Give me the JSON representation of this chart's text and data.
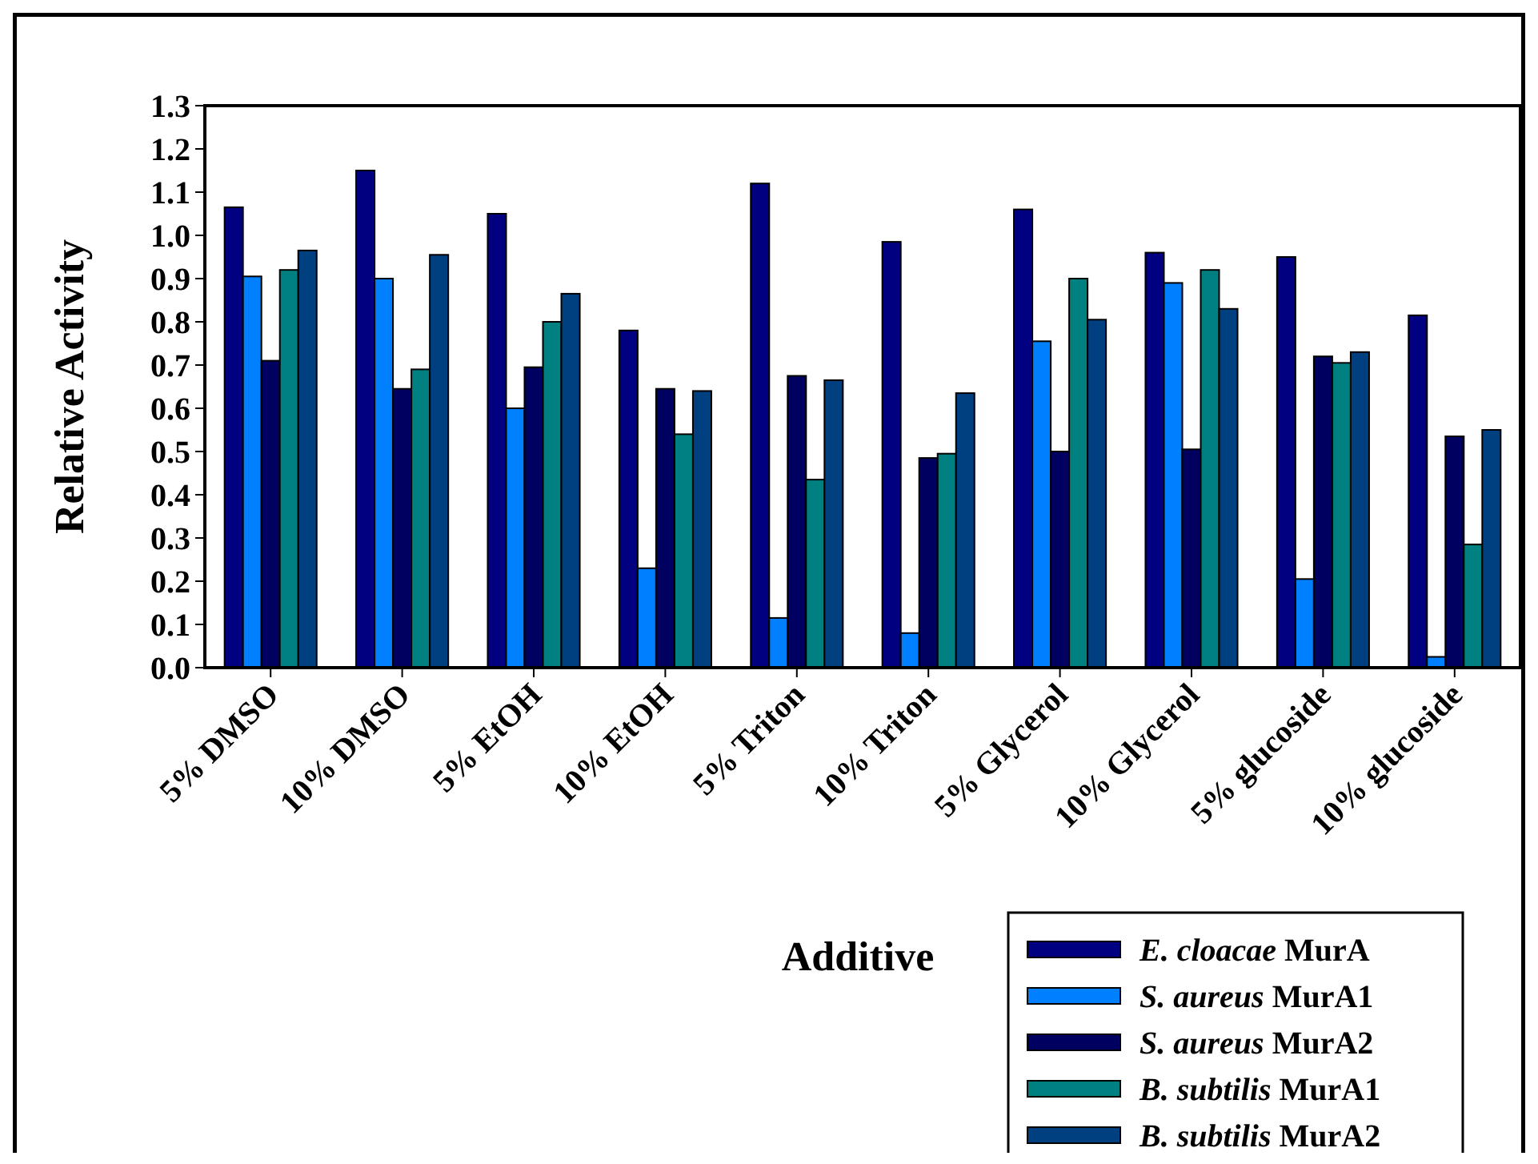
{
  "chart_data": {
    "type": "bar",
    "xlabel": "Additive",
    "ylabel": "Relative Activity",
    "categories": [
      "5% DMSO",
      "10% DMSO",
      "5% EtOH",
      "10% EtOH",
      "5% Triton",
      "10% Triton",
      "5% Glycerol",
      "10% Glycerol",
      "5% glucoside",
      "10% glucoside"
    ],
    "series": [
      {
        "name": "E. cloacae MurA",
        "color": "#000080",
        "values": [
          1.065,
          1.15,
          1.05,
          0.78,
          1.12,
          0.985,
          1.06,
          0.96,
          0.95,
          0.815
        ]
      },
      {
        "name": "S. aureus MurA1",
        "color": "#0080ff",
        "values": [
          0.905,
          0.9,
          0.6,
          0.23,
          0.115,
          0.08,
          0.755,
          0.89,
          0.205,
          0.025
        ]
      },
      {
        "name": "S. aureus MurA2",
        "color": "#000060",
        "values": [
          0.71,
          0.645,
          0.695,
          0.645,
          0.675,
          0.485,
          0.5,
          0.505,
          0.72,
          0.535
        ]
      },
      {
        "name": "B. subtilis MurA1",
        "color": "#008080",
        "values": [
          0.92,
          0.69,
          0.8,
          0.54,
          0.435,
          0.495,
          0.9,
          0.92,
          0.705,
          0.285
        ]
      },
      {
        "name": "B. subtilis MurA2",
        "color": "#004080",
        "values": [
          0.965,
          0.955,
          0.865,
          0.64,
          0.665,
          0.635,
          0.805,
          0.83,
          0.73,
          0.55
        ]
      }
    ],
    "ylim": [
      0,
      1.3
    ],
    "yticks": [
      {
        "value": 0,
        "label": "0.0"
      },
      0.1,
      0.2,
      0.3,
      0.4,
      0.5,
      0.6,
      0.7,
      0.8,
      0.9,
      {
        "value": 1,
        "label": "1.0"
      },
      1.1,
      1.2,
      1.3
    ],
    "grid": false,
    "legend": "bottom right"
  }
}
